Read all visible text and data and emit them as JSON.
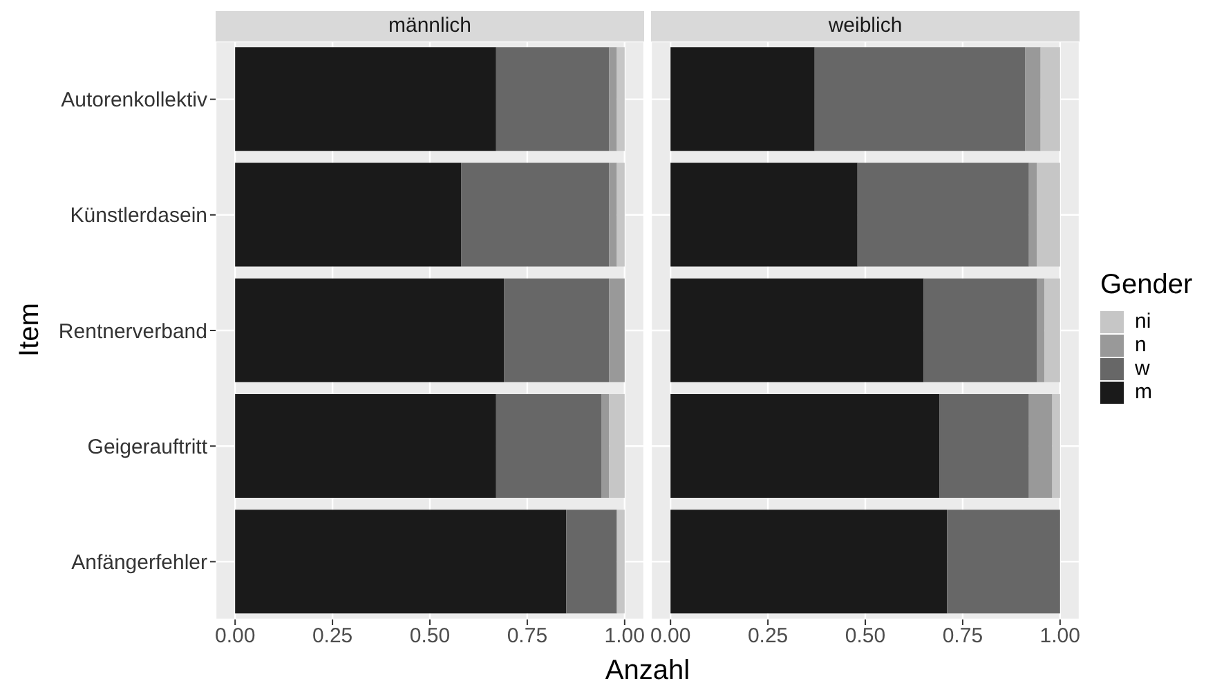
{
  "chart_data": [
    {
      "type": "bar",
      "title": "männlich",
      "orientation": "horizontal",
      "stacked": true,
      "ylabel": "Item",
      "legend": "right",
      "legend_title": "Gender",
      "xlabel": "Anzahl",
      "grid": true,
      "categories": [
        "Autorenkollektiv",
        "Künstlerdasein",
        "Rentnerverband",
        "Geigerauftritt",
        "Anfängerfehler"
      ],
      "series": [
        {
          "name": "m",
          "color": "#1a1a1a",
          "values": [
            0.67,
            0.58,
            0.69,
            0.67,
            0.85
          ]
        },
        {
          "name": "w",
          "color": "#676767",
          "values": [
            0.29,
            0.38,
            0.27,
            0.27,
            0.13
          ]
        },
        {
          "name": "n",
          "color": "#999999",
          "values": [
            0.02,
            0.02,
            0.04,
            0.02,
            0
          ]
        },
        {
          "name": "ni",
          "color": "#c6c6c6",
          "values": [
            0.02,
            0.02,
            0,
            0.04,
            0.02
          ]
        }
      ],
      "xlim": [
        -0.05,
        1.05
      ],
      "xticks": [
        {
          "value": 0,
          "label": "0.00"
        },
        {
          "value": 0.25,
          "label": "0.25"
        },
        {
          "value": 0.5,
          "label": "0.50"
        },
        {
          "value": 0.75,
          "label": "0.75"
        },
        {
          "value": 1,
          "label": "1.00"
        }
      ]
    },
    {
      "type": "bar",
      "title": "weiblich",
      "orientation": "horizontal",
      "stacked": true,
      "grid": true,
      "tick_labels": "x",
      "categories": [
        null,
        null,
        null,
        null,
        null
      ],
      "series": [
        {
          "color": "#1a1a1a",
          "values": [
            0.37,
            0.48,
            0.65,
            0.69,
            0.71
          ]
        },
        {
          "color": "#676767",
          "values": [
            0.54,
            0.44,
            0.29,
            0.23,
            0.29
          ]
        },
        {
          "color": "#999999",
          "values": [
            0.04,
            0.02,
            0.02,
            0.06,
            0
          ]
        },
        {
          "color": "#c6c6c6",
          "values": [
            0.05,
            0.06,
            0.04,
            0.02,
            0
          ]
        }
      ],
      "xlim": [
        -0.05,
        1.05
      ],
      "xticks": [
        {
          "value": 0,
          "label": "0.00"
        },
        {
          "value": 0.25,
          "label": "0.25"
        },
        {
          "value": 0.5,
          "label": "0.50"
        },
        {
          "value": 0.75,
          "label": "0.75"
        },
        {
          "value": 1,
          "label": "1.00"
        }
      ]
    }
  ]
}
